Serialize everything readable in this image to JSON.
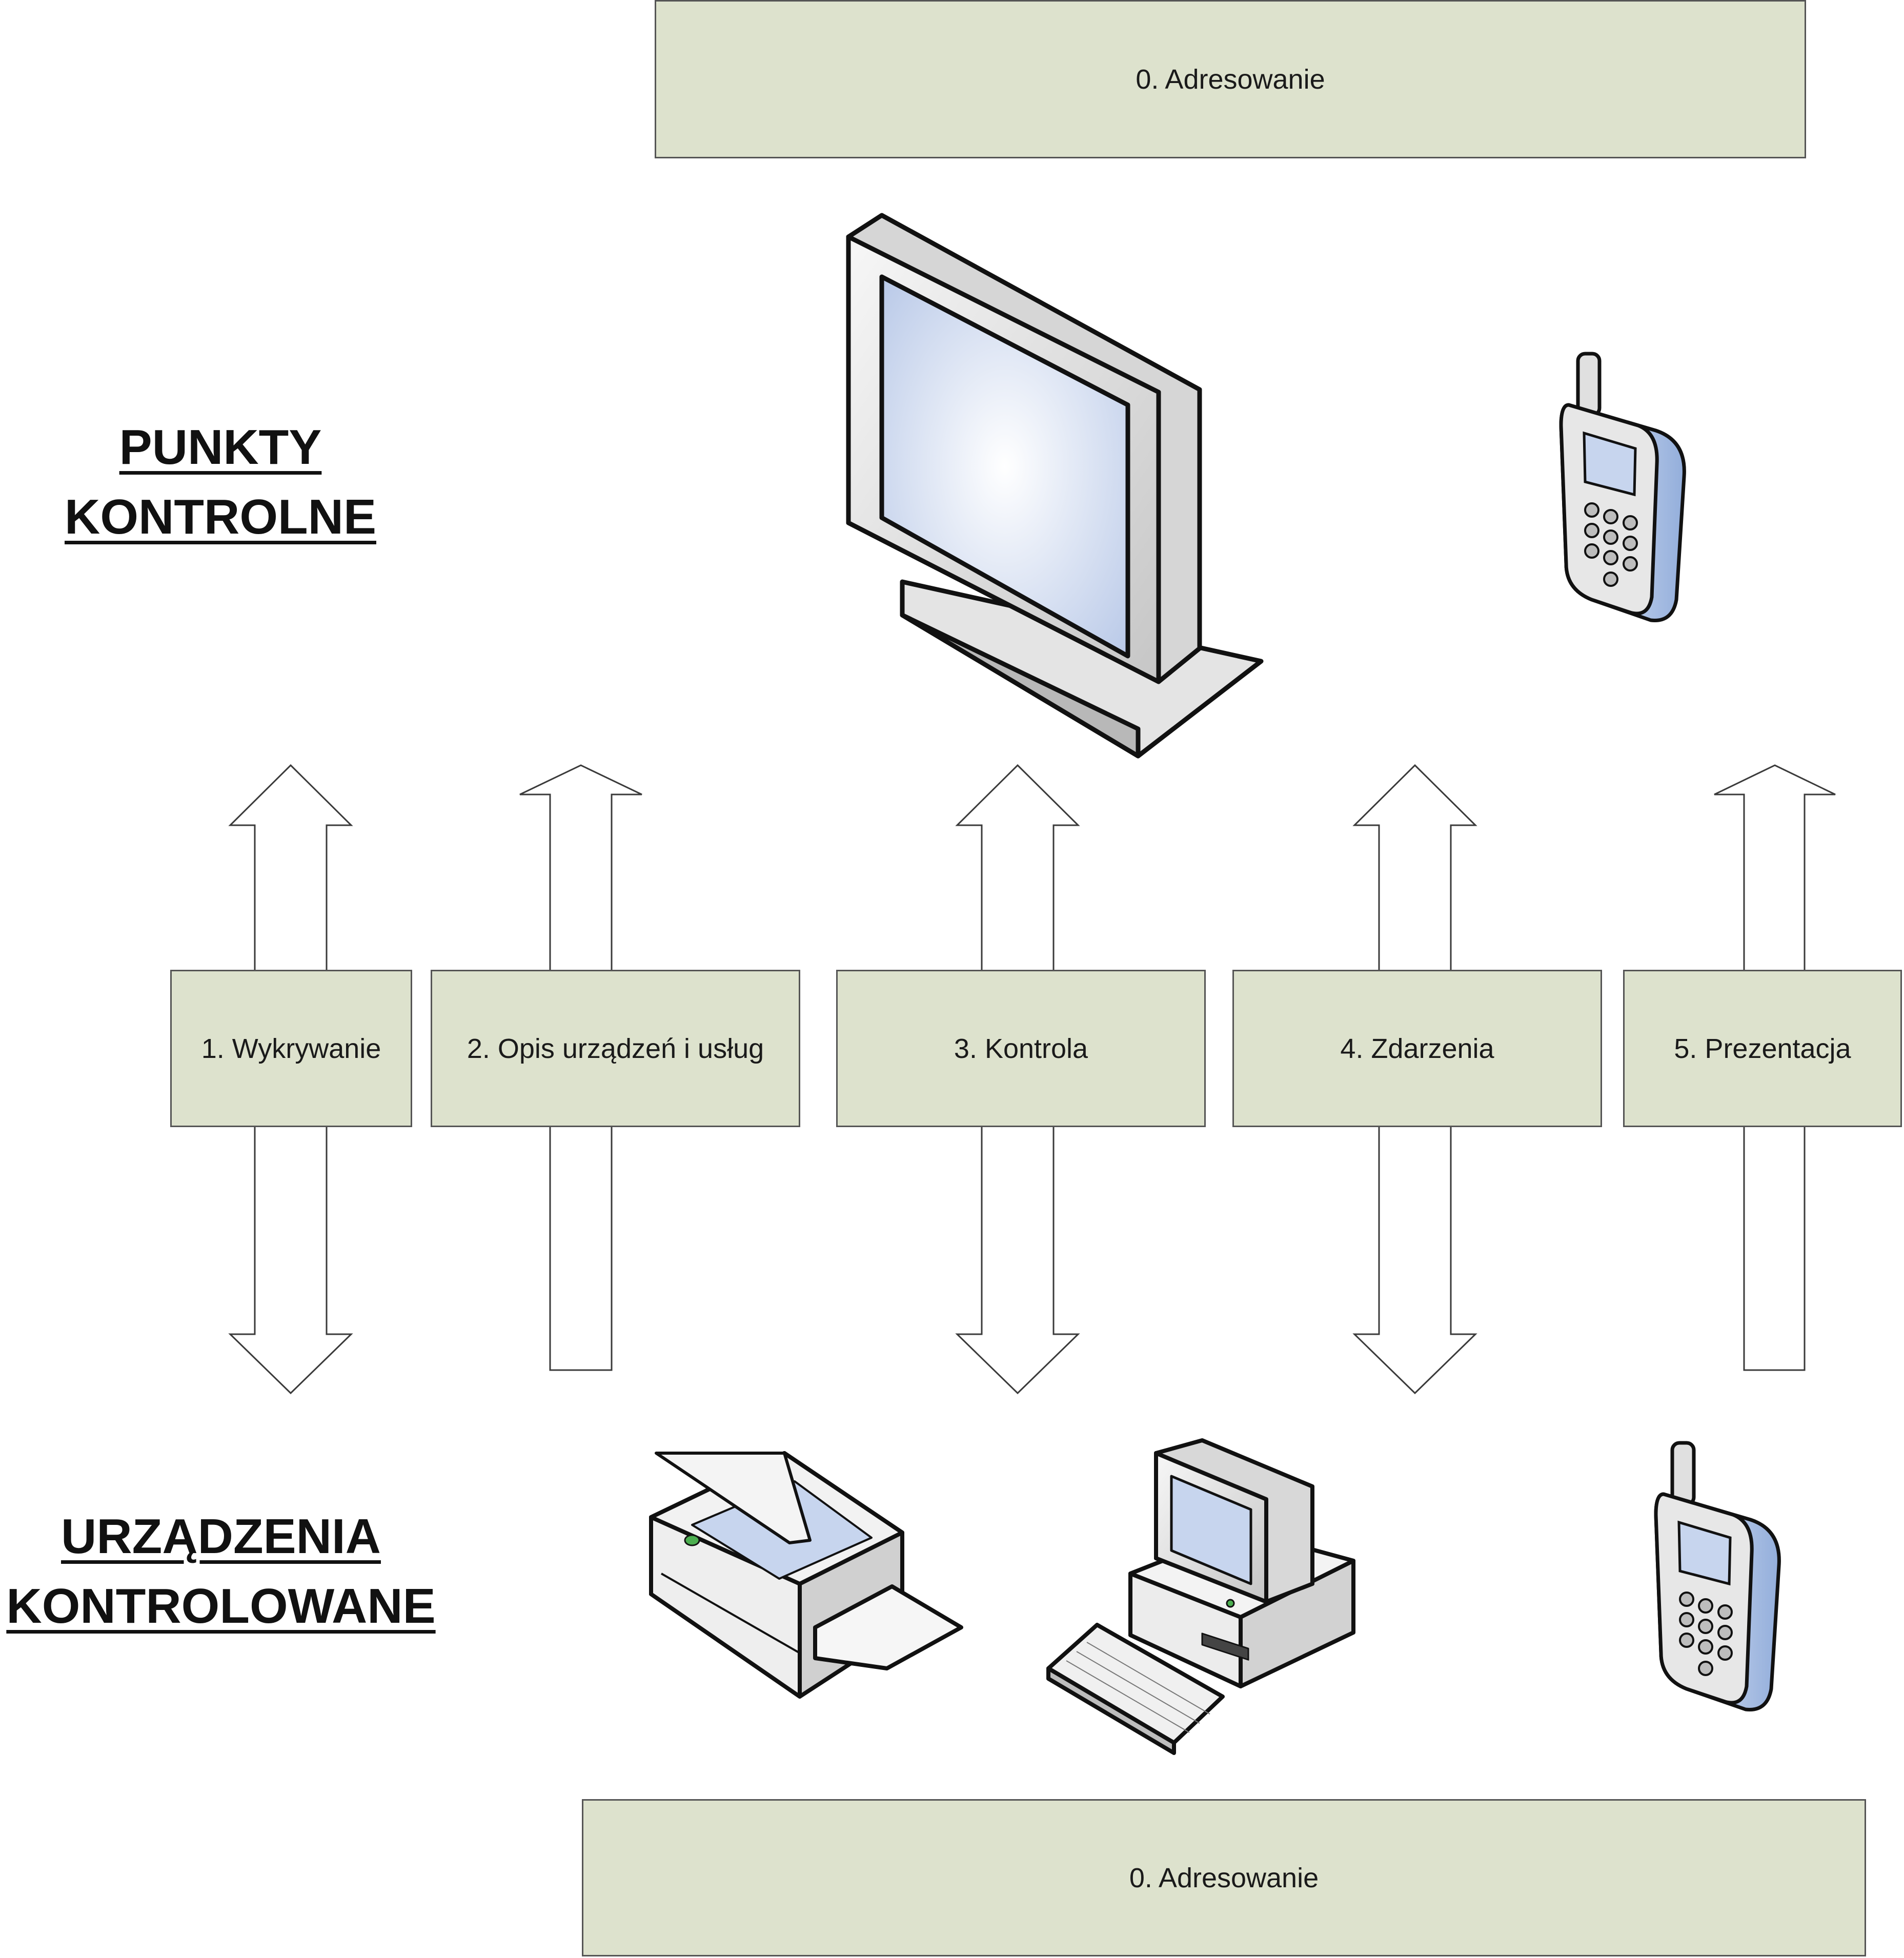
{
  "top_layer": {
    "label": "0. Adresowanie"
  },
  "bottom_layer": {
    "label": "0. Adresowanie"
  },
  "headings": {
    "control_points": [
      "PUNKTY",
      "KONTROLNE"
    ],
    "controlled_devices": [
      "URZĄDZENIA",
      "KONTROLOWANE"
    ]
  },
  "steps": [
    {
      "label": "1. Wykrywanie",
      "arrow": "bidirectional"
    },
    {
      "label": "2. Opis urządzeń i usług",
      "arrow": "up"
    },
    {
      "label": "3. Kontrola",
      "arrow": "bidirectional"
    },
    {
      "label": "4. Zdarzenia",
      "arrow": "bidirectional"
    },
    {
      "label": "5. Prezentacja",
      "arrow": "up"
    }
  ],
  "devices": {
    "control_points": [
      "monitor-icon",
      "mobile-phone-icon"
    ],
    "controlled": [
      "scanner-printer-icon",
      "desktop-computer-icon",
      "mobile-phone-icon"
    ]
  },
  "colors": {
    "box_fill": "#dde2cd",
    "box_border": "#555555",
    "arrow_stroke": "#3a3a3a",
    "screen_blue": "#c7d5ee"
  }
}
